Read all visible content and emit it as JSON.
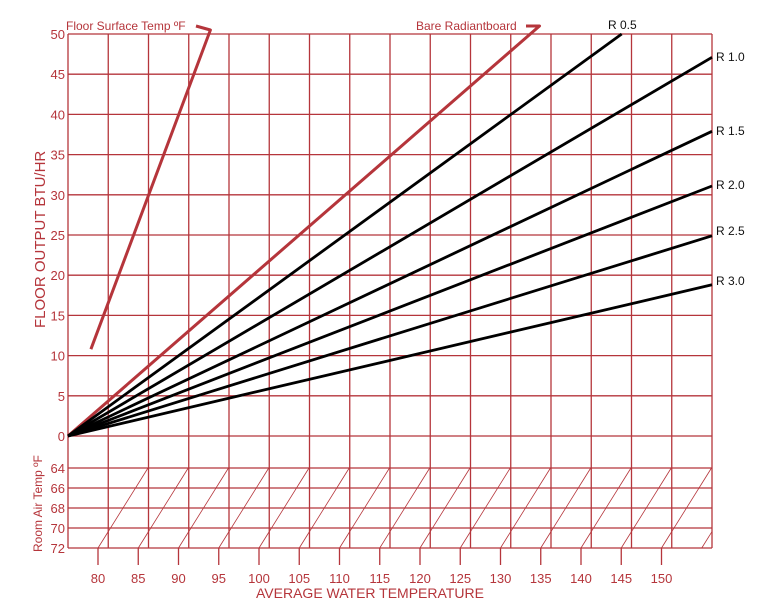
{
  "chart_data": {
    "type": "line",
    "title": "",
    "xlabel": "AVERAGE WATER TEMPERATURE",
    "ylabel": "FLOOR OUTPUT BTU/HR",
    "secondary_ylabel": "Room Air Temp ºF",
    "grid": true,
    "xlim": [
      76.25,
      156.5
    ],
    "ylim": [
      0,
      50
    ],
    "x_ticks": [
      80,
      85,
      90,
      95,
      100,
      105,
      110,
      115,
      120,
      125,
      130,
      135,
      140,
      145,
      150
    ],
    "y_ticks": [
      0,
      5,
      10,
      15,
      20,
      25,
      30,
      35,
      40,
      45,
      50
    ],
    "room_air_ticks": [
      64,
      66,
      68,
      70,
      72
    ],
    "series": [
      {
        "name": "Floor Surface Temp ºF",
        "color": "#b5353b",
        "x": [
          79.1,
          94.0
        ],
        "values": [
          10.8,
          50.5
        ],
        "label_side": "top-left"
      },
      {
        "name": "Bare Radiantboard",
        "color": "#b5353b",
        "x": [
          76.25,
          135.0
        ],
        "values": [
          0,
          51.0
        ],
        "label_side": "top"
      },
      {
        "name": "R 0.5",
        "color": "#000000",
        "x": [
          76.25,
          145.25
        ],
        "values": [
          0,
          50.0
        ]
      },
      {
        "name": "R 1.0",
        "color": "#000000",
        "x": [
          76.25,
          156.5
        ],
        "values": [
          0,
          47.1
        ]
      },
      {
        "name": "R 1.5",
        "color": "#000000",
        "x": [
          76.25,
          156.5
        ],
        "values": [
          0,
          37.9
        ]
      },
      {
        "name": "R 2.0",
        "color": "#000000",
        "x": [
          76.25,
          156.5
        ],
        "values": [
          0,
          31.1
        ]
      },
      {
        "name": "R 2.5",
        "color": "#000000",
        "x": [
          76.25,
          156.5
        ],
        "values": [
          0,
          24.9
        ]
      },
      {
        "name": "R 3.0",
        "color": "#000000",
        "x": [
          76.25,
          156.5
        ],
        "values": [
          0,
          18.8
        ]
      }
    ],
    "annotations": [
      "Floor Surface Temp ºF",
      "Bare Radiantboard",
      "R 0.5",
      "R 1.0",
      "R 1.5",
      "R 2.0",
      "R 2.5",
      "R 3.0"
    ]
  },
  "labels": {
    "floor_surface": "Floor Surface Temp ºF",
    "bare": "Bare Radiantboard",
    "r05": "R 0.5",
    "r10": "R 1.0",
    "r15": "R 1.5",
    "r20": "R 2.0",
    "r25": "R 2.5",
    "r30": "R 3.0",
    "xlabel": "AVERAGE WATER TEMPERATURE",
    "ylabel": "FLOOR OUTPUT BTU/HR",
    "room_air": "Room Air Temp ºF"
  },
  "colors": {
    "grid": "#b5353b",
    "text_red": "#b5353b",
    "r_lines": "#000000"
  }
}
